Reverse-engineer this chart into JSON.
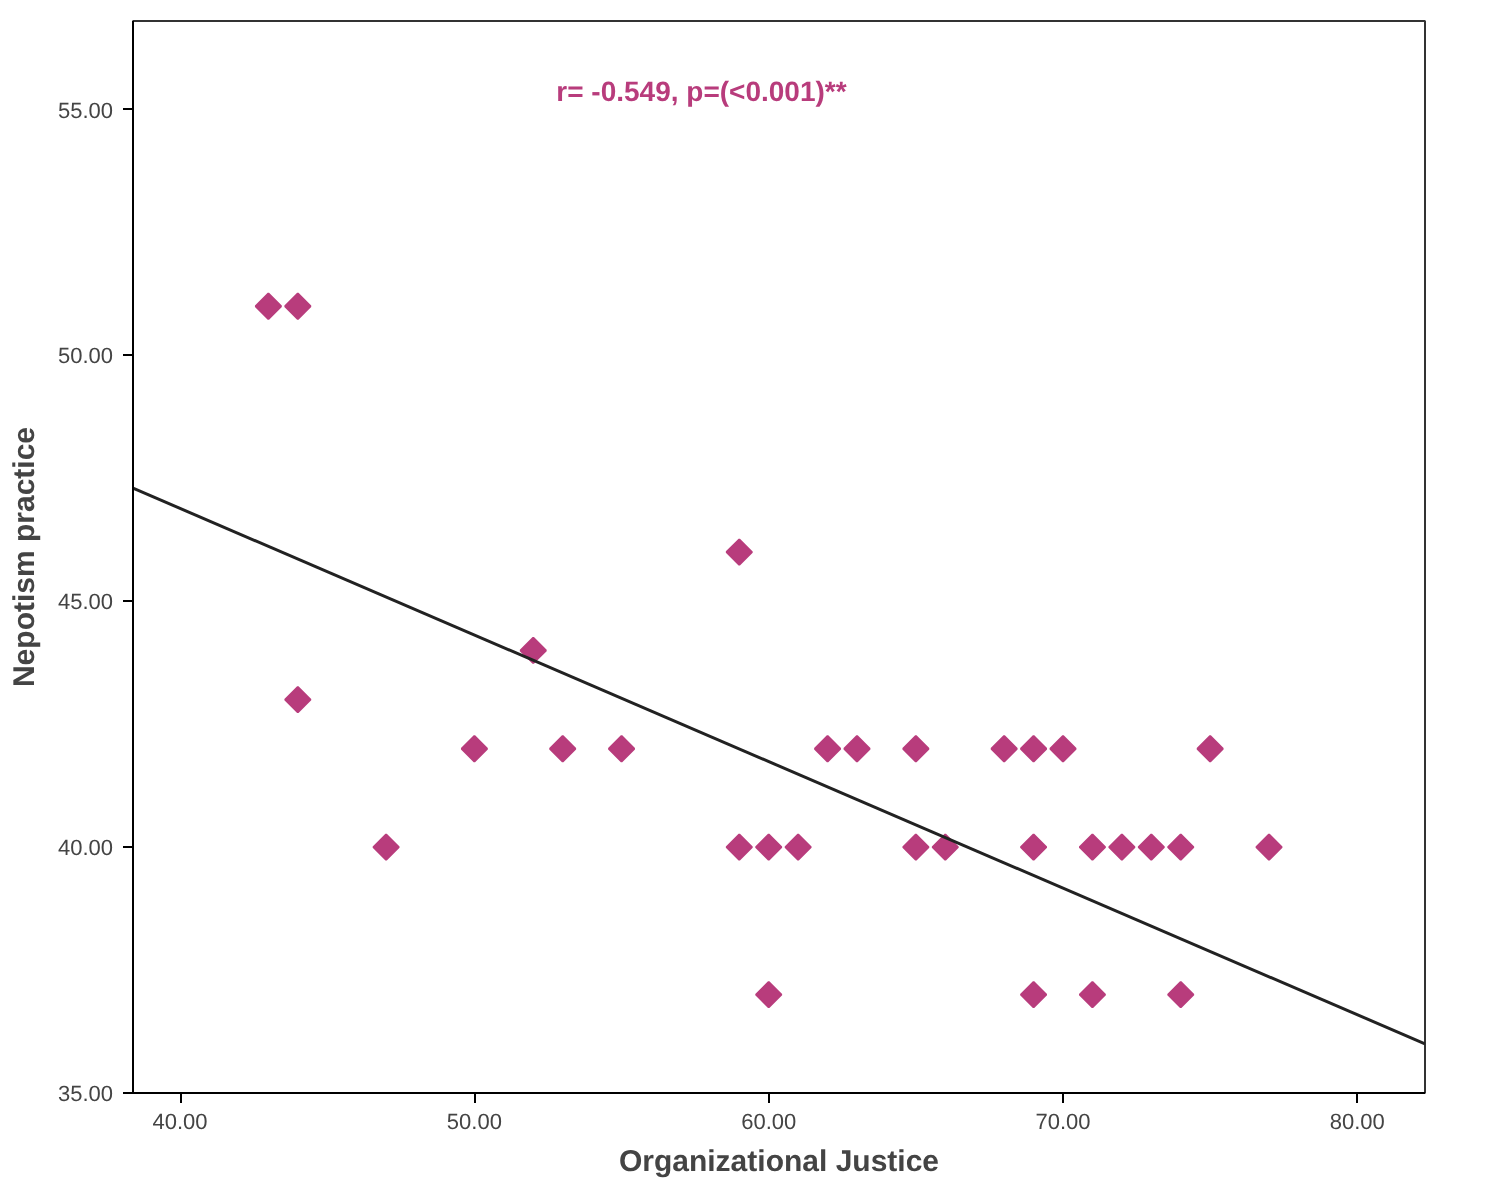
{
  "chart_data": {
    "type": "scatter",
    "xlabel": "Organizational Justice",
    "ylabel": "Nepotism practice",
    "annotations": [
      "r= -0.549, p=(<0.001)**"
    ],
    "x": [
      43,
      44,
      44,
      47,
      50,
      52,
      53,
      55,
      59,
      59,
      60,
      60,
      61,
      62,
      63,
      65,
      65,
      66,
      68,
      69,
      69,
      69,
      70,
      71,
      71,
      72,
      73,
      74,
      74,
      75,
      77
    ],
    "series": [
      {
        "color": "#b83c7c",
        "values": [
          51,
          51,
          43,
          40,
          42,
          44,
          42,
          42,
          46,
          40,
          40,
          37,
          40,
          42,
          42,
          42,
          40,
          40,
          42,
          42,
          40,
          37,
          42,
          40,
          37,
          40,
          40,
          40,
          37,
          42,
          40
        ]
      },
      {
        "type": "line",
        "color": "#222222",
        "x": [
          38.4,
          82.3
        ],
        "values": [
          47.3,
          36.0
        ],
        "marker": "none"
      }
    ],
    "marker": "diamond",
    "xlim": [
      38.4,
      82.3
    ],
    "ylim": [
      35,
      56.8
    ],
    "xticks": [
      {
        "value": 40,
        "label": "40.00"
      },
      {
        "value": 50,
        "label": "50.00"
      },
      {
        "value": 60,
        "label": "60.00"
      },
      {
        "value": 70,
        "label": "70.00"
      },
      {
        "value": 80,
        "label": "80.00"
      }
    ],
    "yticks": [
      {
        "value": 35,
        "label": "35.00"
      },
      {
        "value": 40,
        "label": "40.00"
      },
      {
        "value": 45,
        "label": "45.00"
      },
      {
        "value": 50,
        "label": "50.00"
      },
      {
        "value": 55,
        "label": "55.00"
      }
    ],
    "grid": false
  }
}
